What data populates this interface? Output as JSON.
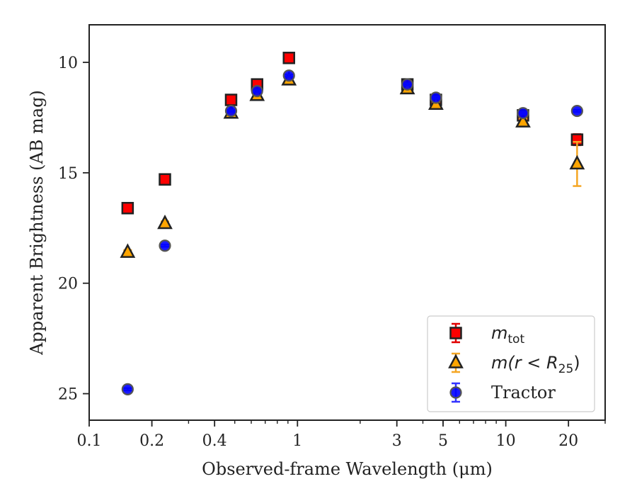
{
  "chart_data": {
    "type": "scatter",
    "xlabel": "Observed-frame Wavelength (μm)",
    "ylabel": "Apparent Brightness (AB mag)",
    "xscale": "log",
    "xlim": [
      0.1,
      30
    ],
    "ylim": [
      26.2,
      8.3
    ],
    "y_inverted": true,
    "xticks": [
      0.1,
      0.2,
      0.4,
      1,
      3,
      5,
      10,
      20
    ],
    "xtick_labels": [
      "0.1",
      "0.2",
      "0.4",
      "1",
      "3",
      "5",
      "10",
      "20"
    ],
    "yticks": [
      10,
      15,
      20,
      25
    ],
    "ytick_labels": [
      "10",
      "15",
      "20",
      "25"
    ],
    "grid": false,
    "legend_position": "lower-right",
    "series": [
      {
        "name_italic": "m",
        "name_sub": "tot",
        "marker": "square",
        "color": "#ff0000",
        "errcolor": "#e00000",
        "x": [
          0.153,
          0.231,
          0.48,
          0.64,
          0.91,
          3.37,
          4.62,
          12.1,
          22.0
        ],
        "y": [
          16.6,
          15.3,
          11.7,
          11.0,
          9.8,
          11.0,
          11.7,
          12.4,
          13.5
        ],
        "yerr": [
          0.12,
          0.12,
          0.1,
          0.1,
          0.1,
          0.1,
          0.1,
          0.15,
          0.25
        ]
      },
      {
        "name_text": "m(r < R",
        "name_sub": "25",
        "name_close": ")",
        "marker": "triangle",
        "color": "#ffa500",
        "errcolor": "#f5a623",
        "x": [
          0.153,
          0.231,
          0.48,
          0.64,
          0.91,
          3.37,
          4.62,
          12.1,
          22.0
        ],
        "y": [
          18.6,
          17.3,
          12.3,
          11.5,
          10.8,
          11.2,
          11.9,
          12.7,
          14.6
        ],
        "yerr": [
          0.1,
          0.1,
          0.1,
          0.1,
          0.1,
          0.1,
          0.1,
          0.15,
          1.0
        ]
      },
      {
        "name": "Tractor",
        "marker": "circle",
        "color": "#0000ff",
        "errcolor": "#3333ff",
        "x": [
          0.153,
          0.231,
          0.48,
          0.64,
          0.91,
          3.37,
          4.62,
          12.1,
          22.0
        ],
        "y": [
          24.8,
          18.3,
          12.2,
          11.3,
          10.6,
          11.0,
          11.6,
          12.3,
          12.2
        ],
        "yerr": [
          0.05,
          0.05,
          0.05,
          0.05,
          0.05,
          0.05,
          0.05,
          0.05,
          0.05
        ]
      }
    ]
  }
}
